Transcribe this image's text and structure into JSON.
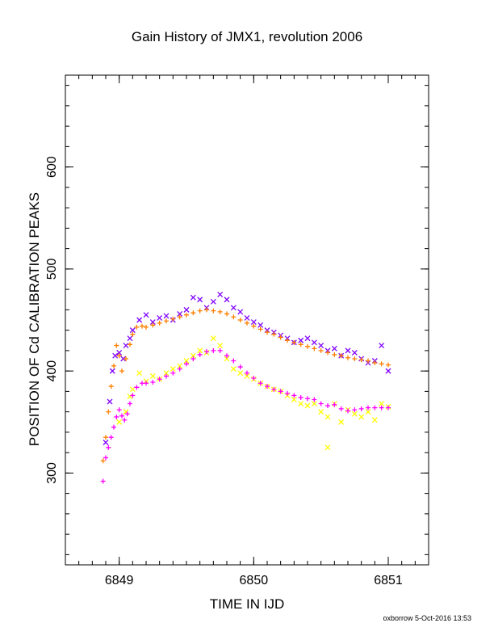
{
  "chart_data": {
    "type": "scatter",
    "title": "Gain History of JMX1, revolution 2006",
    "xlabel": "TIME IN IJD",
    "ylabel": "POSITION OF Cd CALIBRATION PEAKS",
    "xlim": [
      6848.6,
      6851.3
    ],
    "ylim": [
      210,
      690
    ],
    "x_ticks": [
      6849,
      6850,
      6851
    ],
    "y_ticks": [
      300,
      400,
      500,
      600
    ],
    "x_tick_labels": [
      "6849",
      "6850",
      "6851"
    ],
    "y_tick_labels": [
      "300",
      "400",
      "500",
      "600"
    ],
    "grid": false,
    "footer": "oxborrow  5-Oct-2016 13:53",
    "series": [
      {
        "marker": "x",
        "color": "#7f00ff",
        "points": [
          [
            6848.9,
            330
          ],
          [
            6848.93,
            370
          ],
          [
            6848.95,
            400
          ],
          [
            6848.97,
            415
          ],
          [
            6849.0,
            418
          ],
          [
            6849.03,
            412
          ],
          [
            6849.05,
            425
          ],
          [
            6849.08,
            432
          ],
          [
            6849.1,
            440
          ],
          [
            6849.15,
            450
          ],
          [
            6849.2,
            455
          ],
          [
            6849.25,
            448
          ],
          [
            6849.3,
            452
          ],
          [
            6849.35,
            454
          ],
          [
            6849.4,
            450
          ],
          [
            6849.45,
            456
          ],
          [
            6849.5,
            460
          ],
          [
            6849.55,
            472
          ],
          [
            6849.6,
            470
          ],
          [
            6849.65,
            462
          ],
          [
            6849.7,
            468
          ],
          [
            6849.75,
            475
          ],
          [
            6849.8,
            470
          ],
          [
            6849.85,
            462
          ],
          [
            6849.9,
            458
          ],
          [
            6849.95,
            452
          ],
          [
            6850.0,
            448
          ],
          [
            6850.05,
            445
          ],
          [
            6850.1,
            440
          ],
          [
            6850.15,
            438
          ],
          [
            6850.2,
            435
          ],
          [
            6850.25,
            432
          ],
          [
            6850.3,
            428
          ],
          [
            6850.35,
            430
          ],
          [
            6850.4,
            432
          ],
          [
            6850.45,
            428
          ],
          [
            6850.5,
            425
          ],
          [
            6850.55,
            420
          ],
          [
            6850.6,
            422
          ],
          [
            6850.65,
            415
          ],
          [
            6850.7,
            420
          ],
          [
            6850.75,
            418
          ],
          [
            6850.8,
            412
          ],
          [
            6850.85,
            408
          ],
          [
            6850.9,
            410
          ],
          [
            6850.95,
            425
          ],
          [
            6851.0,
            400
          ]
        ]
      },
      {
        "marker": "+",
        "color": "#ff7f00",
        "points": [
          [
            6848.88,
            312
          ],
          [
            6848.9,
            335
          ],
          [
            6848.92,
            360
          ],
          [
            6848.94,
            385
          ],
          [
            6848.96,
            405
          ],
          [
            6848.98,
            425
          ],
          [
            6849.0,
            415
          ],
          [
            6849.02,
            400
          ],
          [
            6849.05,
            412
          ],
          [
            6849.08,
            426
          ],
          [
            6849.1,
            436
          ],
          [
            6849.13,
            443
          ],
          [
            6849.17,
            444
          ],
          [
            6849.2,
            443
          ],
          [
            6849.25,
            445
          ],
          [
            6849.3,
            447
          ],
          [
            6849.35,
            449
          ],
          [
            6849.4,
            451
          ],
          [
            6849.45,
            453
          ],
          [
            6849.5,
            455
          ],
          [
            6849.55,
            457
          ],
          [
            6849.6,
            459
          ],
          [
            6849.65,
            460
          ],
          [
            6849.7,
            459
          ],
          [
            6849.75,
            458
          ],
          [
            6849.8,
            456
          ],
          [
            6849.85,
            453
          ],
          [
            6849.9,
            450
          ],
          [
            6849.95,
            447
          ],
          [
            6850.0,
            444
          ],
          [
            6850.05,
            441
          ],
          [
            6850.1,
            438
          ],
          [
            6850.15,
            436
          ],
          [
            6850.2,
            433
          ],
          [
            6850.25,
            430
          ],
          [
            6850.3,
            428
          ],
          [
            6850.35,
            426
          ],
          [
            6850.4,
            424
          ],
          [
            6850.45,
            422
          ],
          [
            6850.5,
            420
          ],
          [
            6850.55,
            418
          ],
          [
            6850.6,
            416
          ],
          [
            6850.65,
            415
          ],
          [
            6850.7,
            413
          ],
          [
            6850.75,
            412
          ],
          [
            6850.8,
            411
          ],
          [
            6850.85,
            410
          ],
          [
            6850.9,
            408
          ],
          [
            6850.95,
            407
          ],
          [
            6851.0,
            406
          ]
        ]
      },
      {
        "marker": "x",
        "color": "#ffff00",
        "points": [
          [
            6849.0,
            350
          ],
          [
            6849.05,
            360
          ],
          [
            6849.08,
            375
          ],
          [
            6849.1,
            382
          ],
          [
            6849.15,
            398
          ],
          [
            6849.2,
            390
          ],
          [
            6849.25,
            395
          ],
          [
            6849.3,
            392
          ],
          [
            6849.35,
            398
          ],
          [
            6849.4,
            402
          ],
          [
            6849.45,
            405
          ],
          [
            6849.5,
            410
          ],
          [
            6849.55,
            415
          ],
          [
            6849.6,
            420
          ],
          [
            6849.65,
            418
          ],
          [
            6849.7,
            432
          ],
          [
            6849.75,
            425
          ],
          [
            6849.8,
            412
          ],
          [
            6849.85,
            402
          ],
          [
            6849.9,
            398
          ],
          [
            6849.95,
            395
          ],
          [
            6850.0,
            392
          ],
          [
            6850.05,
            388
          ],
          [
            6850.1,
            385
          ],
          [
            6850.15,
            382
          ],
          [
            6850.2,
            380
          ],
          [
            6850.25,
            376
          ],
          [
            6850.3,
            372
          ],
          [
            6850.35,
            368
          ],
          [
            6850.4,
            366
          ],
          [
            6850.45,
            368
          ],
          [
            6850.5,
            360
          ],
          [
            6850.55,
            355
          ],
          [
            6850.55,
            325
          ],
          [
            6850.6,
            368
          ],
          [
            6850.65,
            350
          ],
          [
            6850.7,
            362
          ],
          [
            6850.75,
            358
          ],
          [
            6850.8,
            355
          ],
          [
            6850.85,
            360
          ],
          [
            6850.9,
            352
          ],
          [
            6850.95,
            368
          ],
          [
            6851.0,
            365
          ]
        ]
      },
      {
        "marker": "+",
        "color": "#ff00ff",
        "points": [
          [
            6848.88,
            292
          ],
          [
            6848.9,
            315
          ],
          [
            6848.92,
            325
          ],
          [
            6848.94,
            335
          ],
          [
            6848.96,
            345
          ],
          [
            6848.98,
            355
          ],
          [
            6849.0,
            362
          ],
          [
            6849.02,
            356
          ],
          [
            6849.04,
            352
          ],
          [
            6849.06,
            358
          ],
          [
            6849.08,
            368
          ],
          [
            6849.1,
            376
          ],
          [
            6849.13,
            384
          ],
          [
            6849.17,
            388
          ],
          [
            6849.2,
            388
          ],
          [
            6849.25,
            389
          ],
          [
            6849.3,
            392
          ],
          [
            6849.35,
            395
          ],
          [
            6849.4,
            398
          ],
          [
            6849.45,
            402
          ],
          [
            6849.5,
            407
          ],
          [
            6849.55,
            412
          ],
          [
            6849.6,
            416
          ],
          [
            6849.65,
            419
          ],
          [
            6849.7,
            420
          ],
          [
            6849.75,
            420
          ],
          [
            6849.8,
            415
          ],
          [
            6849.85,
            410
          ],
          [
            6849.9,
            404
          ],
          [
            6849.95,
            398
          ],
          [
            6850.0,
            393
          ],
          [
            6850.05,
            388
          ],
          [
            6850.1,
            385
          ],
          [
            6850.15,
            382
          ],
          [
            6850.2,
            380
          ],
          [
            6850.25,
            378
          ],
          [
            6850.3,
            376
          ],
          [
            6850.35,
            374
          ],
          [
            6850.4,
            373
          ],
          [
            6850.45,
            372
          ],
          [
            6850.5,
            368
          ],
          [
            6850.55,
            366
          ],
          [
            6850.6,
            367
          ],
          [
            6850.65,
            363
          ],
          [
            6850.7,
            361
          ],
          [
            6850.75,
            362
          ],
          [
            6850.8,
            363
          ],
          [
            6850.85,
            364
          ],
          [
            6850.9,
            364
          ],
          [
            6850.95,
            364
          ],
          [
            6851.0,
            364
          ]
        ]
      }
    ]
  }
}
